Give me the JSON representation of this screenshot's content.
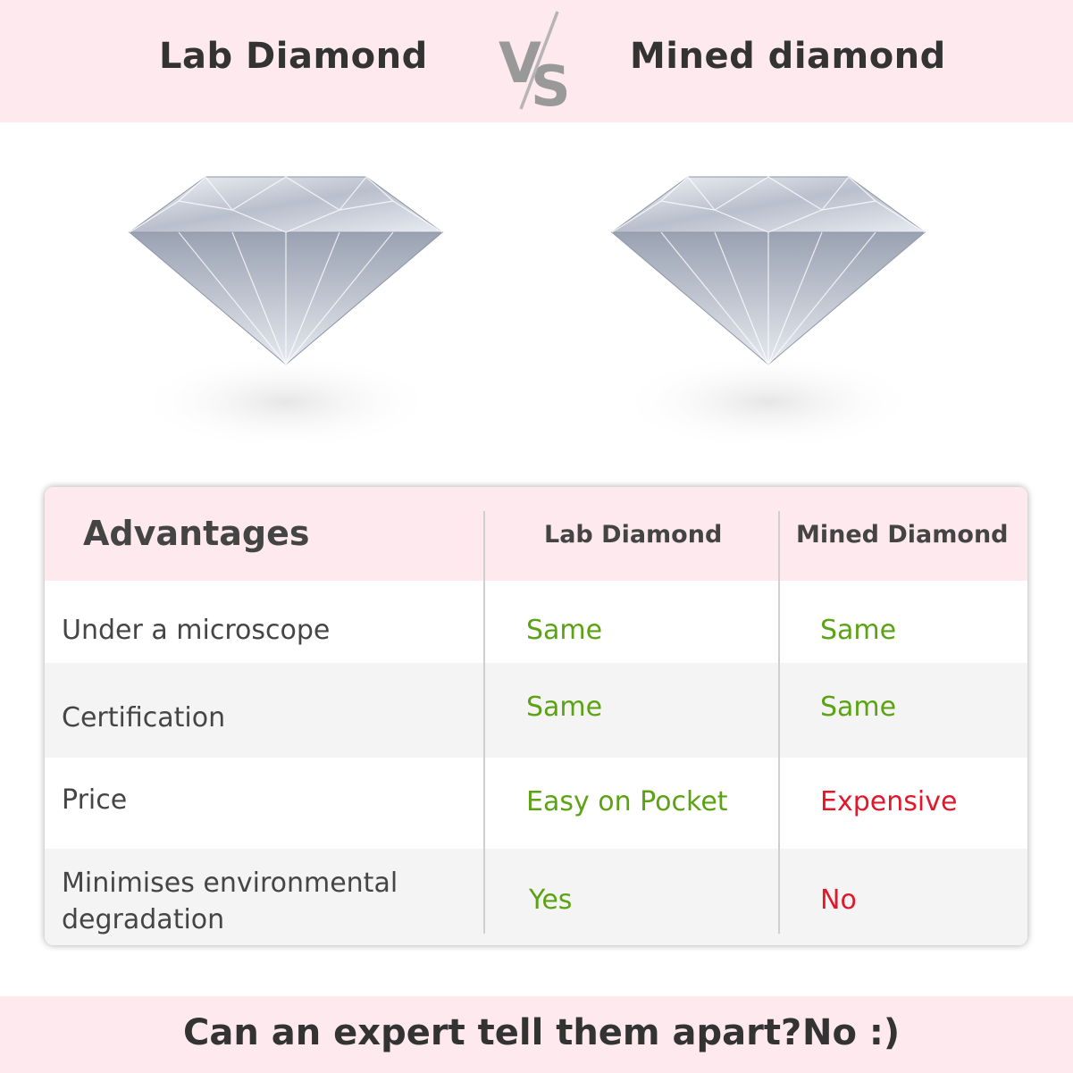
{
  "header": {
    "left_title": "Lab Diamond",
    "vs_logo": "VS",
    "right_title": "Mined diamond"
  },
  "table": {
    "headers": [
      "Advantages",
      "Lab Diamond",
      "Mined Diamond"
    ],
    "rows": [
      {
        "label": "Under a microscope",
        "lab": "Same",
        "mined": "Same",
        "lab_status": "good",
        "mined_status": "good"
      },
      {
        "label": "Certification",
        "lab": "Same",
        "mined": "Same",
        "lab_status": "good",
        "mined_status": "good"
      },
      {
        "label": "Price",
        "lab": "Easy on Pocket",
        "mined": "Expensive",
        "lab_status": "good",
        "mined_status": "bad"
      },
      {
        "label": "Minimises environmental degradation",
        "lab": "Yes",
        "mined": "No",
        "lab_status": "good",
        "mined_status": "bad"
      }
    ]
  },
  "footer": {
    "question": "Can an expert tell them apart?",
    "answer": "No :)"
  },
  "colors": {
    "band_pink": "#fde9ee",
    "good_green": "#5ba313",
    "bad_red": "#e3172a",
    "row_alt_gray": "#f4f4f4"
  }
}
